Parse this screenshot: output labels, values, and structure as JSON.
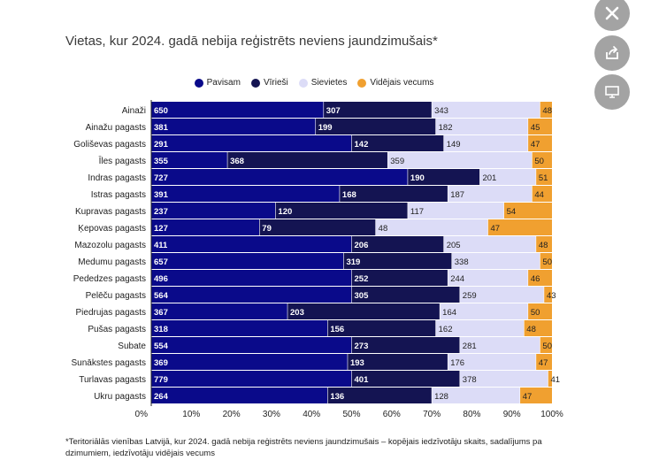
{
  "chart_data": {
    "type": "bar",
    "stacked_percent": true,
    "title": "Vietas, kur 2024. gadā nebija reģistrēts neviens jaundzimušais*",
    "categories": [
      "Ainaži",
      "Ainažu pagasts",
      "Goliševas pagasts",
      "Īles pagasts",
      "Indras pagasts",
      "Istras pagasts",
      "Kupravas pagasts",
      "Ķepovas pagasts",
      "Mazozolu pagasts",
      "Medumu pagasts",
      "Pededzes pagasts",
      "Pelēču pagasts",
      "Piedrujas pagasts",
      "Pušas pagasts",
      "Subate",
      "Sunākstes pagasts",
      "Turlavas pagasts",
      "Ukru pagasts"
    ],
    "series": [
      {
        "name": "Pavisam",
        "color": "#0a0a8a",
        "values": [
          650,
          381,
          291,
          355,
          727,
          391,
          237,
          127,
          411,
          657,
          496,
          564,
          367,
          318,
          554,
          369,
          779,
          264
        ],
        "shares": [
          43,
          41,
          50,
          19,
          64,
          47,
          31,
          27,
          50,
          48,
          50,
          50,
          34,
          44,
          50,
          49,
          50,
          44
        ]
      },
      {
        "name": "Vīrieši",
        "color": "#141452",
        "values": [
          307,
          199,
          142,
          368,
          190,
          168,
          120,
          79,
          206,
          319,
          252,
          305,
          203,
          156,
          273,
          193,
          401,
          136
        ],
        "shares": [
          27,
          30,
          23,
          40,
          18,
          27,
          33,
          29,
          23,
          27,
          24,
          27,
          38,
          27,
          27,
          25,
          27,
          26
        ]
      },
      {
        "name": "Sievietes",
        "color": "#dcdcf7",
        "values": [
          343,
          182,
          149,
          359,
          201,
          187,
          117,
          48,
          205,
          338,
          244,
          259,
          164,
          162,
          281,
          176,
          378,
          128
        ],
        "shares": [
          27,
          23,
          21,
          36,
          14,
          21,
          24,
          28,
          23,
          22,
          20,
          21,
          22,
          22,
          20,
          22,
          22,
          22
        ]
      },
      {
        "name": "Vidējais vecums",
        "color": "#f0a030",
        "values": [
          48,
          45,
          47,
          50,
          51,
          44,
          54,
          47,
          48,
          50,
          46,
          43,
          50,
          48,
          50,
          47,
          41,
          47
        ],
        "shares": [
          3,
          6,
          6,
          5,
          4,
          5,
          12,
          16,
          4,
          3,
          6,
          2,
          6,
          7,
          3,
          4,
          1,
          8
        ]
      }
    ],
    "xlabel": "",
    "ylabel": "",
    "xlim": [
      0,
      100
    ],
    "x_ticks": [
      "0%",
      "10%",
      "20%",
      "30%",
      "40%",
      "50%",
      "60%",
      "70%",
      "80%",
      "90%",
      "100%"
    ],
    "legend_position": "top"
  },
  "footnote": "*Teritoriālās vienības Latvijā, kur 2024. gadā nebija reģistrēts neviens jaundzimušais – kopējais iedzīvotāju skaits, sadalījums pa dzimumiem, iedzīvotāju vidējais vecums",
  "buttons": {
    "close": "close-icon",
    "share": "share-icon",
    "present": "monitor-icon"
  }
}
